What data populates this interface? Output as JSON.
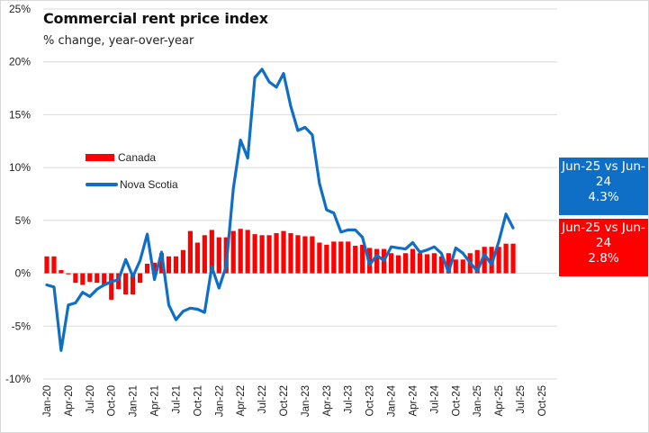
{
  "chart_data": {
    "type": "bar+line",
    "title": "Commercial rent price index",
    "subtitle": "% change, year-over-year",
    "xlabel": "",
    "ylabel": "",
    "ylim": [
      -10,
      25
    ],
    "yticks": [
      -10,
      -5,
      0,
      5,
      10,
      15,
      20,
      25
    ],
    "ytick_labels": [
      "-10%",
      "-5%",
      "0%",
      "5%",
      "10%",
      "15%",
      "20%",
      "25%"
    ],
    "grid": true,
    "legend_position": "upper-left inside plot",
    "xtick_labels": [
      "Jan-20",
      "Apr-20",
      "Jul-20",
      "Oct-20",
      "Jan-21",
      "Apr-21",
      "Jul-21",
      "Oct-21",
      "Jan-22",
      "Apr-22",
      "Jul-22",
      "Oct-22",
      "Jan-23",
      "Apr-23",
      "Jul-23",
      "Oct-23",
      "Jan-24",
      "Apr-24",
      "Jul-24",
      "Oct-24",
      "Jan-25",
      "Apr-25",
      "Jul-25",
      "Oct-25"
    ],
    "x_start": "Jan-20",
    "x_axis_months": 70,
    "series": [
      {
        "name": "Canada",
        "type": "bar",
        "color": "#ff0000",
        "values": [
          1.6,
          1.6,
          0.3,
          -0.1,
          -0.9,
          -1.1,
          -0.8,
          -0.9,
          -1.1,
          -2.5,
          -1.5,
          -2.0,
          -2.0,
          -0.9,
          0.9,
          1.0,
          1.9,
          1.6,
          1.6,
          2.2,
          4.0,
          2.9,
          3.6,
          4.1,
          3.4,
          3.4,
          4.0,
          4.2,
          4.1,
          3.7,
          3.6,
          3.6,
          3.8,
          4.0,
          3.8,
          3.6,
          3.5,
          3.5,
          2.9,
          2.7,
          3.0,
          3.0,
          3.0,
          2.6,
          2.7,
          2.4,
          2.3,
          2.3,
          1.9,
          1.7,
          1.9,
          2.3,
          1.9,
          1.8,
          1.9,
          1.6,
          1.9,
          1.3,
          1.3,
          1.9,
          2.2,
          2.5,
          2.5,
          2.5,
          2.8,
          2.8
        ]
      },
      {
        "name": "Nova Scotia",
        "type": "line",
        "color": "#0f6fc6",
        "values": [
          -1.1,
          -1.3,
          -7.3,
          -3.0,
          -2.8,
          -1.8,
          -2.2,
          -1.5,
          -1.1,
          -0.8,
          -0.6,
          1.3,
          -0.3,
          1.2,
          3.7,
          -0.6,
          2.0,
          -3.0,
          -4.4,
          -3.6,
          -3.3,
          -3.4,
          -3.7,
          0.6,
          -1.4,
          0.7,
          8.0,
          12.6,
          10.9,
          18.5,
          19.3,
          18.1,
          17.6,
          18.9,
          15.8,
          13.5,
          13.8,
          13.1,
          8.5,
          6.0,
          5.7,
          3.9,
          4.1,
          4.1,
          3.4,
          0.8,
          1.7,
          1.2,
          2.5,
          2.4,
          2.3,
          2.9,
          2.0,
          2.2,
          2.5,
          1.9,
          0.1,
          2.4,
          1.9,
          1.0,
          0.2,
          1.8,
          0.8,
          3.0,
          5.6,
          4.3
        ]
      }
    ],
    "annotations": [
      {
        "series": "Nova Scotia",
        "text": [
          "Jun-25 vs Jun-",
          "24",
          "4.3%"
        ],
        "color": "#0f6fc6"
      },
      {
        "series": "Canada",
        "text": [
          "Jun-25 vs Jun-",
          "24",
          "2.8%"
        ],
        "color": "#ff0000"
      }
    ]
  },
  "legend": {
    "items": [
      {
        "label": "Canada",
        "color": "#ff0000"
      },
      {
        "label": "Nova Scotia",
        "color": "#0f6fc6"
      }
    ]
  },
  "callouts": {
    "ns": {
      "line1": "Jun-25 vs Jun-",
      "line2": "24",
      "line3": "4.3%"
    },
    "ca": {
      "line1": "Jun-25 vs Jun-",
      "line2": "24",
      "line3": "2.8%"
    }
  }
}
